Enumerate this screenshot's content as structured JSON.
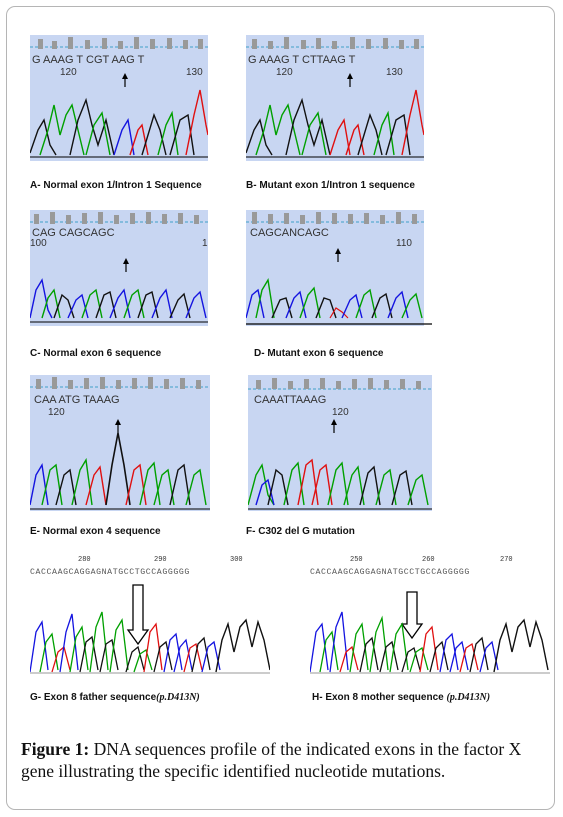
{
  "panels": [
    {
      "id": "A",
      "seq": "G AAAG T CGT AAG T",
      "num_left": "120",
      "num_right": "130",
      "caption": "A- Normal exon 1/Intron 1 Sequence"
    },
    {
      "id": "B",
      "seq": "G AAAG T CTTAAG T",
      "num_left": "120",
      "num_right": "130",
      "caption": "B- Mutant exon 1/Intron 1 sequence"
    },
    {
      "id": "C",
      "seq": "CAG CAGCAGC",
      "num_left": "100",
      "num_right": "1",
      "caption": "C- Normal exon 6 sequence"
    },
    {
      "id": "D",
      "seq": "CAGCANCAGC",
      "num_left": "",
      "num_right": "110",
      "caption": "D- Mutant exon 6 sequence"
    },
    {
      "id": "E",
      "seq": "CAA ATG TAAAG",
      "num_left": "120",
      "num_right": "",
      "caption": "E- Normal exon 4 sequence"
    },
    {
      "id": "F",
      "seq": "CAAATTAAAG",
      "num_left": "",
      "num_right": "",
      "num_mid": "120",
      "caption": "F- C302 del G mutation"
    },
    {
      "id": "G",
      "seq": "CACCAAGCAGGAGNATGCCTGCCAGGGGG",
      "ticks": [
        "280",
        "290",
        "300"
      ],
      "caption_main": "G- Exon 8 father sequence",
      "caption_paren": "(p.D413N)"
    },
    {
      "id": "H",
      "seq": "CACCAAGCAGGAGNATGCCTGCCAGGGGG",
      "ticks": [
        "250",
        "260",
        "270"
      ],
      "caption_main": "H- Exon 8 mother sequence ",
      "caption_paren": "(p.D413N)"
    }
  ],
  "figure_caption": {
    "label": "Figure 1:",
    "text": " DNA sequences profile of the indicated exons in the factor X gene illustrating the specific identified nucleotide mutations."
  },
  "colors": {
    "A": "#00a000",
    "C": "#1414e0",
    "G": "#111111",
    "T": "#e01010",
    "panel_bg": "#c8d6f2"
  }
}
